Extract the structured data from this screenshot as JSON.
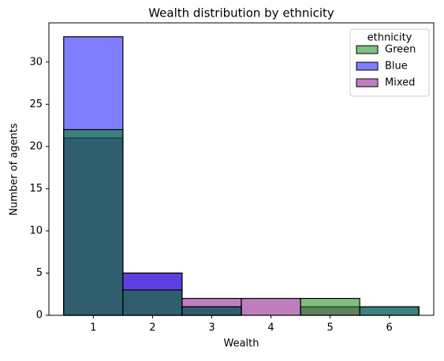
{
  "chart_data": {
    "type": "histogram",
    "title": "Wealth distribution by ethnicity",
    "x_label": "Wealth",
    "y_label": "Number of agents",
    "bins": [
      0.5,
      1.5,
      2.5,
      3.5,
      4.5,
      5.5,
      6.5
    ],
    "series": [
      {
        "name": "Green",
        "color": "#008000",
        "values": [
          22,
          3,
          1,
          0,
          2,
          1
        ]
      },
      {
        "name": "Blue",
        "color": "#0000ff",
        "values": [
          33,
          5,
          1,
          0,
          0,
          1
        ]
      },
      {
        "name": "Mixed",
        "color": "#800080",
        "values": [
          21,
          5,
          2,
          2,
          1,
          0
        ]
      }
    ],
    "xlim": [
      0.25,
      6.75
    ],
    "xticks": [
      1,
      2,
      3,
      4,
      5,
      6
    ],
    "ylim": [
      0,
      34.65
    ],
    "yticks": [
      0,
      5,
      10,
      15,
      20,
      25,
      30
    ],
    "legend_title": "ethnicity",
    "legend_position": "upper-right"
  }
}
